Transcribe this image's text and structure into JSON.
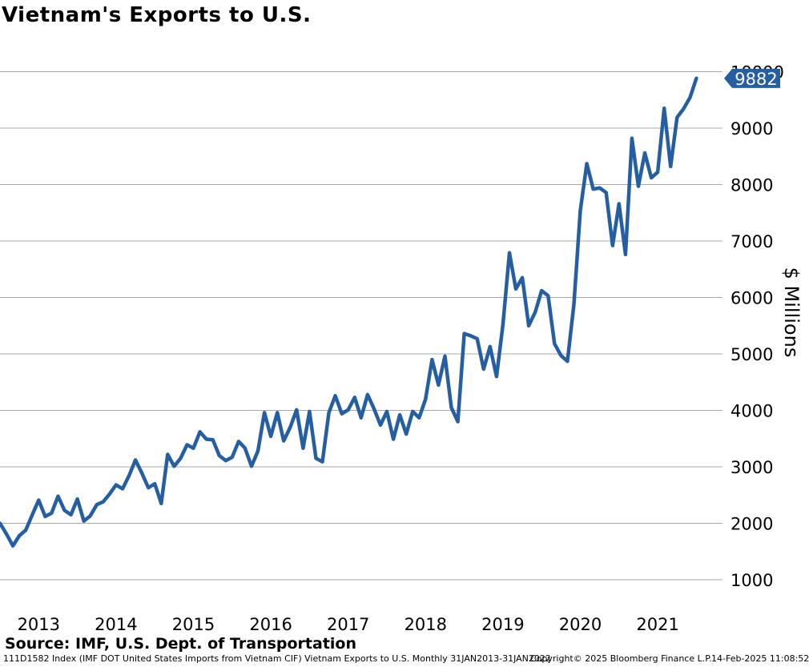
{
  "chart_data": {
    "type": "line",
    "title": "Vietnam's Exports to U.S.",
    "ylabel": "$ Millions",
    "xlabel": "",
    "ylim": [
      900,
      10200
    ],
    "y_ticks": [
      1000,
      2000,
      3000,
      4000,
      5000,
      6000,
      7000,
      8000,
      9000,
      10000
    ],
    "x_ticks": [
      "2013",
      "2014",
      "2015",
      "2016",
      "2017",
      "2018",
      "2019",
      "2020",
      "2021"
    ],
    "grid": true,
    "x_start": "Jan 2013",
    "series": [
      {
        "color": "#255EA1",
        "values": [
          2000,
          1810,
          1600,
          1780,
          1880,
          2150,
          2410,
          2120,
          2180,
          2480,
          2230,
          2150,
          2430,
          2040,
          2130,
          2330,
          2380,
          2520,
          2680,
          2610,
          2840,
          3120,
          2890,
          2630,
          2700,
          2350,
          3220,
          3010,
          3150,
          3390,
          3330,
          3620,
          3490,
          3480,
          3200,
          3110,
          3170,
          3450,
          3330,
          3010,
          3280,
          3960,
          3540,
          3960,
          3460,
          3700,
          4010,
          3330,
          3980,
          3150,
          3090,
          3960,
          4260,
          3940,
          4010,
          4230,
          3870,
          4280,
          4030,
          3740,
          3980,
          3490,
          3920,
          3580,
          3980,
          3870,
          4200,
          4900,
          4450,
          4960,
          4050,
          3800,
          5360,
          5320,
          5270,
          4730,
          5130,
          4600,
          5520,
          6790,
          6150,
          6350,
          5500,
          5740,
          6120,
          6030,
          5180,
          4970,
          4870,
          5880,
          7540,
          8370,
          7920,
          7940,
          7860,
          6920,
          7660,
          6760,
          8820,
          7970,
          8560,
          8120,
          8220,
          9350,
          8320,
          9190,
          9340,
          9540,
          9882
        ]
      }
    ],
    "last_value_label": "9882"
  },
  "source": "Source: IMF, U.S. Dept. of Transportation",
  "footer": {
    "left": "111D1582 Index (IMF DOT United States Imports from Vietnam CIF) Vietnam Exports to U.S.  Monthly 31JAN2013-31JAN2022",
    "center": "Copyright© 2025 Bloomberg Finance L.P.",
    "right": "14-Feb-2025 11:08:52"
  }
}
